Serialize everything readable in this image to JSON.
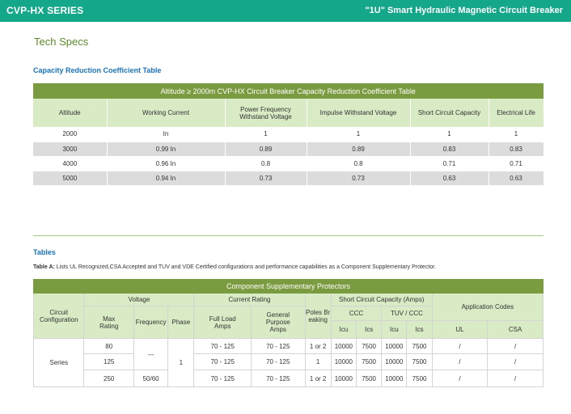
{
  "header": {
    "series": "CVP-HX SERIES",
    "product": "\"1U\" Smart Hydraulic Magnetic Circuit Breaker"
  },
  "page_title": "Tech Specs",
  "capacity": {
    "subtitle": "Capacity Reduction Coefficient Table",
    "table_title": "Altitude ≥ 2000m CVP-HX Circuit Breaker Capacity Reduction Coefficient Table",
    "columns": [
      "Altitude",
      "Working Current",
      "Power Frequency Withstand Voltage",
      "Impulse Withstand Voltage",
      "Short Circuit Capacity",
      "Electrical Life"
    ],
    "rows": [
      [
        "2000",
        "In",
        "1",
        "1",
        "1",
        "1"
      ],
      [
        "3000",
        "0.99 In",
        "0.89",
        "0.89",
        "0.83",
        "0.83"
      ],
      [
        "4000",
        "0.96 In",
        "0.8",
        "0.8",
        "0.71",
        "0.71"
      ],
      [
        "5000",
        "0.94 In",
        "0.73",
        "0.73",
        "0.63",
        "0.63"
      ]
    ]
  },
  "tables": {
    "subtitle": "Tables",
    "desc_label": "Table A:",
    "desc_text": " Lists UL Recognized,CSA Accepted and TUV and VDE Certified configurations and performance capabilities as a Component Supplementary  Protector.",
    "table_title": "Component  Supplementary Protectors",
    "h": {
      "circuit_config": "Circuit Configuration",
      "voltage": "Voltage",
      "current_rating": "Current Rating",
      "poles_breaking": "Poles Breaking",
      "short_circuit": "Short Circuit Capacity (Amps)",
      "app_codes": "Application Codes",
      "max_rating": "Max Rating",
      "frequency": "Frequency",
      "phase": "Phase",
      "full_load": "Full Load Amps",
      "general_purpose": "General Purpose Amps",
      "ccc": "CCC",
      "tuv_ccc": "TUV / CCC",
      "ul": "UL",
      "csa": "CSA",
      "icu1": "Icu",
      "ics1": "Ics",
      "icu2": "Icu",
      "ics2": "Ics"
    },
    "series": "Series",
    "freq_merged": "---",
    "phase_merged": "1",
    "rows": [
      {
        "max": "80",
        "freq": "",
        "fla": "70 - 125",
        "gpa": "70 - 125",
        "poles": "1 or 2",
        "icu1": "10000",
        "ics1": "7500",
        "icu2": "10000",
        "ics2": "7500",
        "ul": "/",
        "csa": "/"
      },
      {
        "max": "125",
        "freq": "",
        "fla": "70 - 125",
        "gpa": "70 - 125",
        "poles": "1",
        "icu1": "10000",
        "ics1": "7500",
        "icu2": "10000",
        "ics2": "7500",
        "ul": "/",
        "csa": "/"
      },
      {
        "max": "250",
        "freq": "50/60",
        "fla": "70 - 125",
        "gpa": "70 - 125",
        "poles": "1 or 2",
        "icu1": "10000",
        "ics1": "7500",
        "icu2": "10000",
        "ics2": "7500",
        "ul": "/",
        "csa": "/"
      }
    ]
  }
}
